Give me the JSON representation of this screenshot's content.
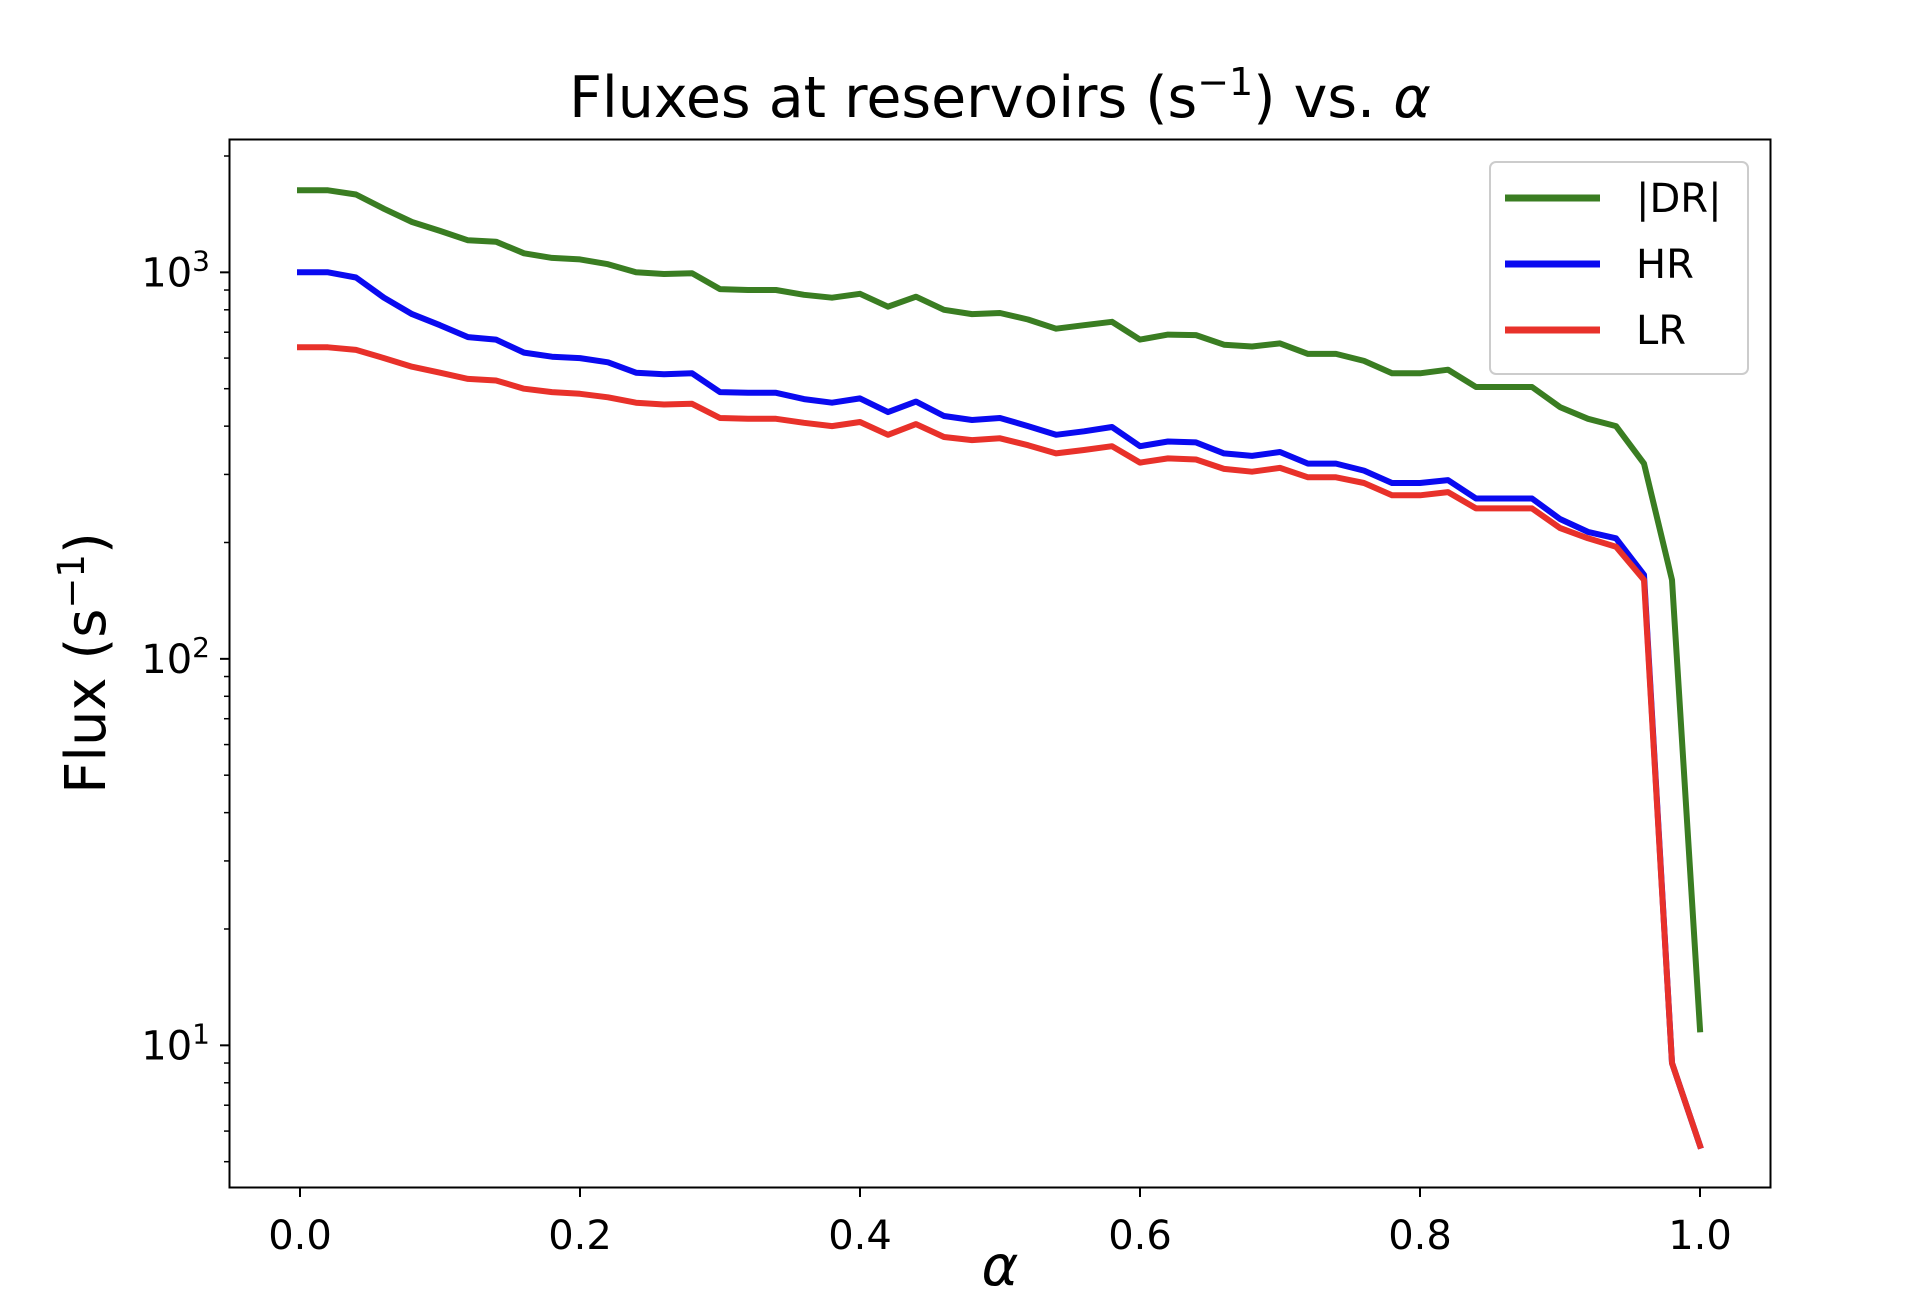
{
  "chart_data": {
    "type": "line",
    "title": "Fluxes at reservoirs (s⁻¹) vs. α",
    "title_parts": {
      "main": "Fluxes at reservoirs (s",
      "sup": "−1",
      "tail": ") vs. ",
      "symbol": "α"
    },
    "xlabel": "α",
    "ylabel_parts": {
      "main": "Flux (s",
      "sup": "−1",
      "tail": ")"
    },
    "y_scale": "log",
    "xlim": [
      -0.05,
      1.05
    ],
    "ylim": [
      4.3,
      2200
    ],
    "x_ticks": [
      0.0,
      0.2,
      0.4,
      0.6,
      0.8,
      1.0
    ],
    "x_tick_labels": [
      "0.0",
      "0.2",
      "0.4",
      "0.6",
      "0.8",
      "1.0"
    ],
    "y_ticks": [
      10,
      100,
      1000
    ],
    "y_tick_labels": [
      {
        "base": "10",
        "exp": "1"
      },
      {
        "base": "10",
        "exp": "2"
      },
      {
        "base": "10",
        "exp": "3"
      }
    ],
    "grid": false,
    "legend_position": "top-right",
    "x": [
      0.0,
      0.02,
      0.04,
      0.06,
      0.08,
      0.1,
      0.12,
      0.14,
      0.16,
      0.18,
      0.2,
      0.22,
      0.24,
      0.26,
      0.28,
      0.3,
      0.32,
      0.34,
      0.36,
      0.38,
      0.4,
      0.42,
      0.44,
      0.46,
      0.48,
      0.5,
      0.52,
      0.54,
      0.56,
      0.58,
      0.6,
      0.62,
      0.64,
      0.66,
      0.68,
      0.7,
      0.72,
      0.74,
      0.76,
      0.78,
      0.8,
      0.82,
      0.84,
      0.86,
      0.88,
      0.9,
      0.92,
      0.94,
      0.96,
      0.98,
      1.0
    ],
    "series": [
      {
        "name": "|DR|",
        "color": "#3a7d22",
        "values": [
          1630,
          1630,
          1590,
          1460,
          1350,
          1280,
          1210,
          1200,
          1120,
          1090,
          1080,
          1050,
          1000,
          990,
          995,
          905,
          900,
          900,
          875,
          860,
          880,
          815,
          865,
          800,
          780,
          785,
          755,
          715,
          730,
          745,
          670,
          690,
          688,
          650,
          643,
          655,
          615,
          615,
          590,
          548,
          548,
          560,
          505,
          505,
          505,
          448,
          418,
          400,
          320,
          160,
          11
        ]
      },
      {
        "name": "HR",
        "color": "#0a0af0",
        "values": [
          1000,
          1000,
          970,
          860,
          780,
          730,
          680,
          670,
          620,
          605,
          600,
          585,
          550,
          545,
          548,
          490,
          488,
          488,
          470,
          460,
          472,
          435,
          463,
          425,
          415,
          420,
          400,
          380,
          388,
          398,
          355,
          365,
          363,
          340,
          335,
          343,
          320,
          320,
          307,
          285,
          285,
          290,
          260,
          260,
          260,
          230,
          213,
          205,
          165,
          9,
          5.5
        ]
      },
      {
        "name": "LR",
        "color": "#e8312a",
        "values": [
          640,
          640,
          630,
          600,
          570,
          550,
          530,
          525,
          500,
          490,
          485,
          475,
          460,
          455,
          457,
          420,
          418,
          418,
          408,
          400,
          410,
          380,
          405,
          375,
          368,
          372,
          357,
          340,
          347,
          355,
          322,
          330,
          328,
          310,
          305,
          312,
          295,
          295,
          285,
          265,
          265,
          270,
          245,
          245,
          245,
          218,
          205,
          195,
          160,
          9,
          5.5
        ]
      }
    ]
  }
}
